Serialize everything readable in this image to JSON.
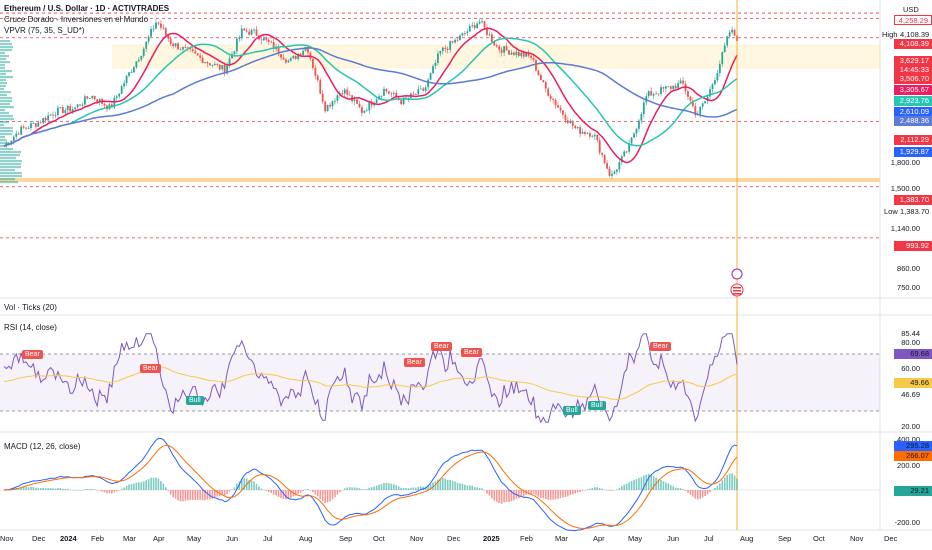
{
  "header": {
    "title": "Ethereum / U.S. Dollar · 1D · ACTIVTRADES",
    "indicator1": "Cruce Dorado - Inversiones en el Mundo",
    "indicator2": "VPVR (75, 35, S_UD*)",
    "currency": "USD"
  },
  "panes": {
    "volume_title": "Vol · Ticks (20)",
    "rsi_title": "RSI (14, close)",
    "macd_title": "MACD (12, 26, close)"
  },
  "price_axis": {
    "ticks": [
      "1,800.00",
      "1,500.00",
      "1,140.00",
      "860.00",
      "750.00"
    ],
    "high_label": "High",
    "high_value": "4,108.39",
    "low_label": "Low",
    "low_value": "1,383.70",
    "tags": [
      {
        "text": "4,258.29",
        "color": "#f23645",
        "outline": true
      },
      {
        "text": "4,108.39",
        "color": "#f23645"
      },
      {
        "text": "3,629.17",
        "color": "#f23645"
      },
      {
        "text": "14:45:33",
        "color": "#f23645"
      },
      {
        "text": "3,506.70",
        "color": "#f23645"
      },
      {
        "text": "3,305.67",
        "color": "#e91e63"
      },
      {
        "text": "2,923.76",
        "color": "#26c6b0"
      },
      {
        "text": "2,610.09",
        "color": "#2962ff"
      },
      {
        "text": "2,488.36",
        "color": "#5b7bd5"
      },
      {
        "text": "2,112.29",
        "color": "#f23645"
      },
      {
        "text": "1,929.87",
        "color": "#2962ff"
      },
      {
        "text": "1,383.70",
        "color": "#f23645"
      },
      {
        "text": "993.92",
        "color": "#f23645"
      }
    ]
  },
  "rsi_axis": {
    "ticks": [
      "85.44",
      "80.00",
      "60.00",
      "46.69",
      "20.00"
    ],
    "tags": [
      {
        "text": "69.68",
        "color": "#7e57c2"
      },
      {
        "text": "49.66",
        "color": "#f7c948"
      }
    ]
  },
  "macd_axis": {
    "ticks": [
      "400.00",
      "200.00",
      "-200.00"
    ],
    "tags": [
      {
        "text": "295.28",
        "color": "#2962ff"
      },
      {
        "text": "266.07",
        "color": "#ff6d00"
      },
      {
        "text": "29.21",
        "color": "#26a69a"
      }
    ]
  },
  "signals": [
    {
      "text": "Bear",
      "type": "bear"
    },
    {
      "text": "Bear",
      "type": "bear"
    },
    {
      "text": "Bull",
      "type": "bull"
    },
    {
      "text": "Bear",
      "type": "bear"
    },
    {
      "text": "Bear",
      "type": "bear"
    },
    {
      "text": "Bear",
      "type": "bear"
    },
    {
      "text": "Bull",
      "type": "bull"
    },
    {
      "text": "Bull",
      "type": "bull"
    },
    {
      "text": "Bear",
      "type": "bear"
    }
  ],
  "x_axis": {
    "labels": [
      {
        "text": "Nov",
        "bold": false
      },
      {
        "text": "Dec",
        "bold": false
      },
      {
        "text": "2024",
        "bold": true
      },
      {
        "text": "Feb",
        "bold": false
      },
      {
        "text": "Mar",
        "bold": false
      },
      {
        "text": "Apr",
        "bold": false
      },
      {
        "text": "May",
        "bold": false
      },
      {
        "text": "Jun",
        "bold": false
      },
      {
        "text": "Jul",
        "bold": false
      },
      {
        "text": "Aug",
        "bold": false
      },
      {
        "text": "Sep",
        "bold": false
      },
      {
        "text": "Oct",
        "bold": false
      },
      {
        "text": "Nov",
        "bold": false
      },
      {
        "text": "Dec",
        "bold": false
      },
      {
        "text": "2025",
        "bold": true
      },
      {
        "text": "Feb",
        "bold": false
      },
      {
        "text": "Mar",
        "bold": false
      },
      {
        "text": "Apr",
        "bold": false
      },
      {
        "text": "May",
        "bold": false
      },
      {
        "text": "Jun",
        "bold": false
      },
      {
        "text": "Jul",
        "bold": false
      },
      {
        "text": "Aug",
        "bold": false
      },
      {
        "text": "Sep",
        "bold": false
      },
      {
        "text": "Oct",
        "bold": false
      },
      {
        "text": "Nov",
        "bold": false
      },
      {
        "text": "Dec",
        "bold": false
      }
    ]
  },
  "colors": {
    "bull": "#26a69a",
    "bear": "#ef5350",
    "sma_fast": "#e91e63",
    "sma_mid": "#26c6b0",
    "sma_slow": "#5b7bd5",
    "rsi": "#7e57c2",
    "rsi_ma": "#f7c948",
    "macd": "#2962ff",
    "signal": "#ff6d00",
    "levels": "#f23645",
    "zone": "#ffe082"
  },
  "chart_data": {
    "type": "candlestick",
    "symbol": "ETHUSD",
    "period": "1D",
    "y_scale": "log",
    "ylim": [
      700,
      4400
    ],
    "price_path": [
      [
        "2023-11-01",
        1800
      ],
      [
        "2023-11-15",
        2000
      ],
      [
        "2023-12-01",
        2100
      ],
      [
        "2023-12-15",
        2250
      ],
      [
        "2024-01-01",
        2300
      ],
      [
        "2024-01-15",
        2500
      ],
      [
        "2024-02-01",
        2300
      ],
      [
        "2024-02-15",
        2800
      ],
      [
        "2024-03-01",
        3400
      ],
      [
        "2024-03-12",
        4050
      ],
      [
        "2024-03-25",
        3500
      ],
      [
        "2024-04-10",
        3300
      ],
      [
        "2024-04-25",
        3100
      ],
      [
        "2024-05-10",
        2950
      ],
      [
        "2024-05-25",
        3800
      ],
      [
        "2024-06-05",
        3750
      ],
      [
        "2024-06-20",
        3450
      ],
      [
        "2024-07-05",
        3100
      ],
      [
        "2024-07-20",
        3450
      ],
      [
        "2024-08-05",
        2300
      ],
      [
        "2024-08-20",
        2600
      ],
      [
        "2024-09-06",
        2250
      ],
      [
        "2024-09-25",
        2600
      ],
      [
        "2024-10-10",
        2400
      ],
      [
        "2024-10-30",
        2600
      ],
      [
        "2024-11-12",
        3300
      ],
      [
        "2024-11-30",
        3650
      ],
      [
        "2024-12-16",
        4050
      ],
      [
        "2025-01-01",
        3400
      ],
      [
        "2025-01-15",
        3300
      ],
      [
        "2025-01-30",
        3200
      ],
      [
        "2025-02-10",
        2650
      ],
      [
        "2025-02-25",
        2250
      ],
      [
        "2025-03-10",
        2000
      ],
      [
        "2025-03-25",
        1950
      ],
      [
        "2025-04-09",
        1470
      ],
      [
        "2025-04-25",
        1800
      ],
      [
        "2025-05-10",
        2500
      ],
      [
        "2025-05-25",
        2600
      ],
      [
        "2025-06-10",
        2700
      ],
      [
        "2025-06-22",
        2200
      ],
      [
        "2025-07-01",
        2450
      ],
      [
        "2025-07-11",
        3000
      ],
      [
        "2025-07-21",
        3800
      ],
      [
        "2025-07-27",
        3629
      ]
    ],
    "levels": [
      4258.29,
      4108.39,
      3629.17,
      2112.29,
      1383.7,
      993.92
    ],
    "supply_zone": [
      3590,
      4108.39
    ],
    "demand_zone": [
      1560,
      1600
    ],
    "last_price": 3629.17,
    "sma_values": {
      "fast": 3305.67,
      "mid": 2923.76,
      "slow": 2488.36
    },
    "rsi": {
      "period": 14,
      "last": 69.68,
      "ma": 49.66,
      "overbought": 70,
      "oversold": 30
    },
    "macd": {
      "macd": 295.28,
      "signal": 266.07,
      "hist": 29.21
    }
  }
}
